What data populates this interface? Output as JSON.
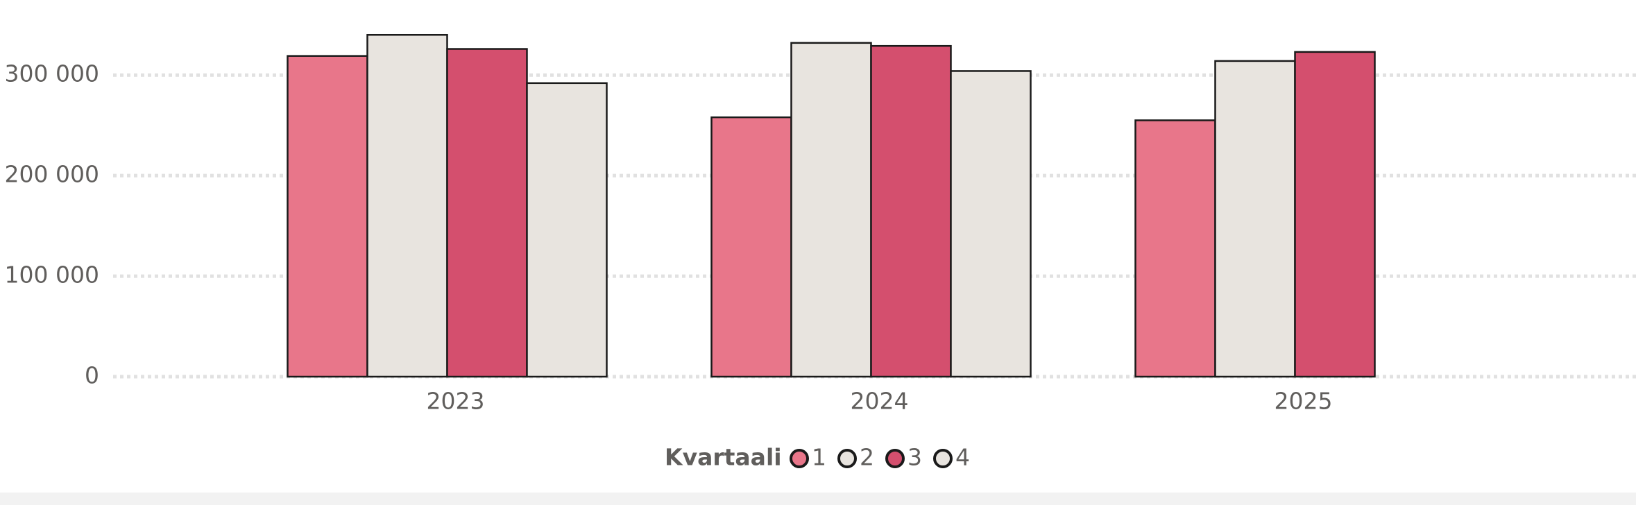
{
  "chart_data": {
    "type": "bar",
    "categories": [
      "2023",
      "2024",
      "2025"
    ],
    "legend_title": "Kvartaali",
    "series": [
      {
        "name": "1",
        "color": "#e8768a",
        "values": [
          319000,
          258000,
          255000
        ]
      },
      {
        "name": "2",
        "color": "#e8e4df",
        "values": [
          340000,
          332000,
          314000
        ]
      },
      {
        "name": "3",
        "color": "#d44f6e",
        "values": [
          326000,
          329000,
          323000
        ]
      },
      {
        "name": "4",
        "color": "#e8e4df",
        "values": [
          292000,
          304000,
          null
        ]
      }
    ],
    "ylim": [
      0,
      345000
    ],
    "yticks": [
      0,
      {
        "value": 100000,
        "label": "100 000"
      },
      {
        "value": 200000,
        "label": "200 000"
      },
      {
        "value": 300000,
        "label": "300 000"
      }
    ],
    "grid": true,
    "legend": "bottom"
  }
}
